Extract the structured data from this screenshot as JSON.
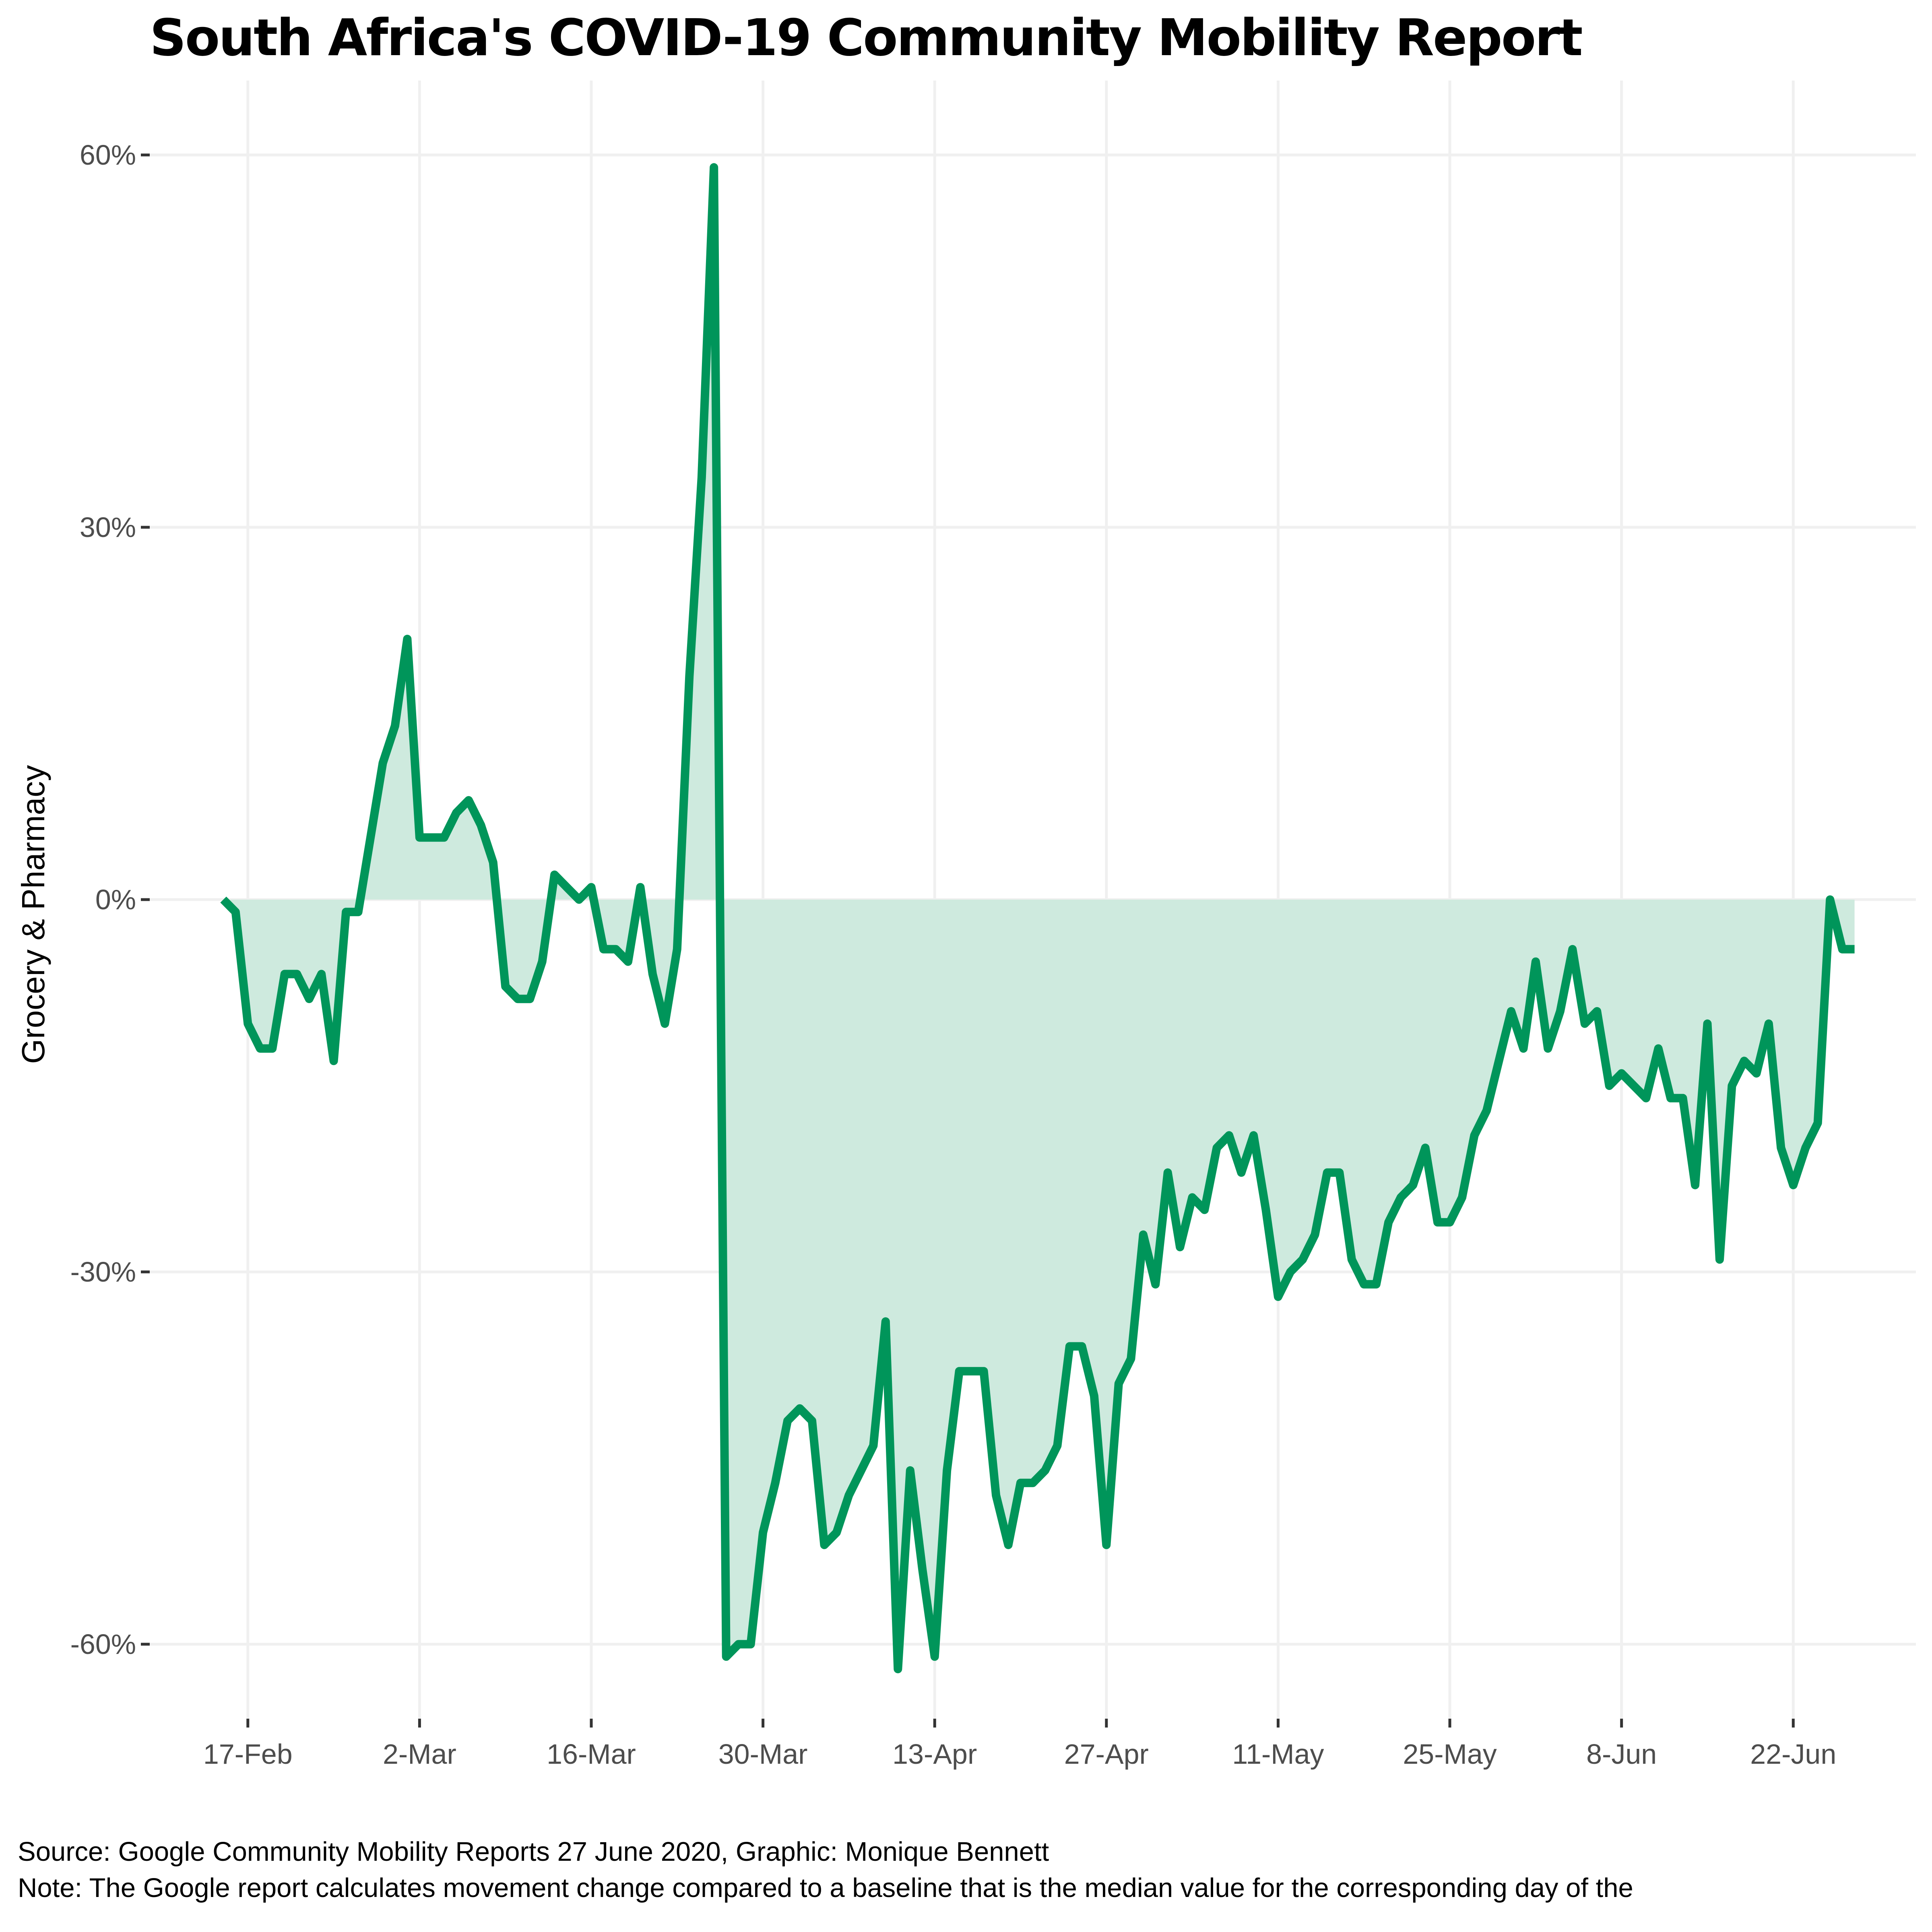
{
  "chart_data": {
    "type": "area",
    "title": "South Africa's COVID-19 Community Mobility Report",
    "xlabel": "",
    "ylabel": "Grocery & Pharmacy",
    "x_start": "2020-02-15",
    "x_end": "2020-06-27",
    "xlim": [
      "2020-02-09",
      "2020-07-02"
    ],
    "ylim": [
      -66,
      66
    ],
    "y_ticks": [
      60,
      30,
      0,
      -30,
      -60
    ],
    "y_tick_labels": [
      "60%",
      "30%",
      "0%",
      "-30%",
      "-60%"
    ],
    "x_ticks": [
      "2020-02-17",
      "2020-03-02",
      "2020-03-16",
      "2020-03-30",
      "2020-04-13",
      "2020-04-27",
      "2020-05-11",
      "2020-05-25",
      "2020-06-08",
      "2020-06-22"
    ],
    "x_tick_labels": [
      "17-Feb",
      "2-Mar",
      "16-Mar",
      "30-Mar",
      "13-Apr",
      "27-Apr",
      "11-May",
      "25-May",
      "8-Jun",
      "22-Jun"
    ],
    "grid": true,
    "legend": "none",
    "line_color": "#00955a",
    "fill_color": "#ceeade",
    "values": [
      0,
      -1,
      -10,
      -12,
      -12,
      -6,
      -6,
      -8,
      -6,
      -13,
      -1,
      -1,
      5,
      11,
      14,
      21,
      5,
      5,
      5,
      7,
      8,
      6,
      3,
      -7,
      -8,
      -8,
      -5,
      2,
      1,
      0,
      1,
      -4,
      -4,
      -5,
      1,
      -6,
      -10,
      -4,
      18,
      34,
      59,
      -61,
      -60,
      -60,
      -51,
      -47,
      -42,
      -41,
      -42,
      -52,
      -51,
      -48,
      -46,
      -44,
      -34,
      -62,
      -46,
      -54,
      -61,
      -46,
      -38,
      -38,
      -38,
      -48,
      -52,
      -47,
      -47,
      -46,
      -44,
      -36,
      -36,
      -40,
      -52,
      -39,
      -37,
      -27,
      -31,
      -22,
      -28,
      -24,
      -25,
      -20,
      -19,
      -22,
      -19,
      -25,
      -32,
      -30,
      -29,
      -27,
      -22,
      -22,
      -29,
      -31,
      -31,
      -26,
      -24,
      -23,
      -20,
      -26,
      -26,
      -24,
      -19,
      -17,
      -13,
      -9,
      -12,
      -5,
      -12,
      -9,
      -4,
      -10,
      -9,
      -15,
      -14,
      -15,
      -16,
      -12,
      -16,
      -16,
      -23,
      -10,
      -29,
      -15,
      -13,
      -14,
      -10,
      -20,
      -23,
      -20,
      -18,
      0,
      -4,
      -4
    ]
  },
  "footer": {
    "source": "Source: Google Community Mobility Reports 27 June 2020, Graphic: Monique Bennett",
    "note": "Note: The Google report calculates movement change compared to a baseline that is the median value for the corresponding day of the"
  }
}
